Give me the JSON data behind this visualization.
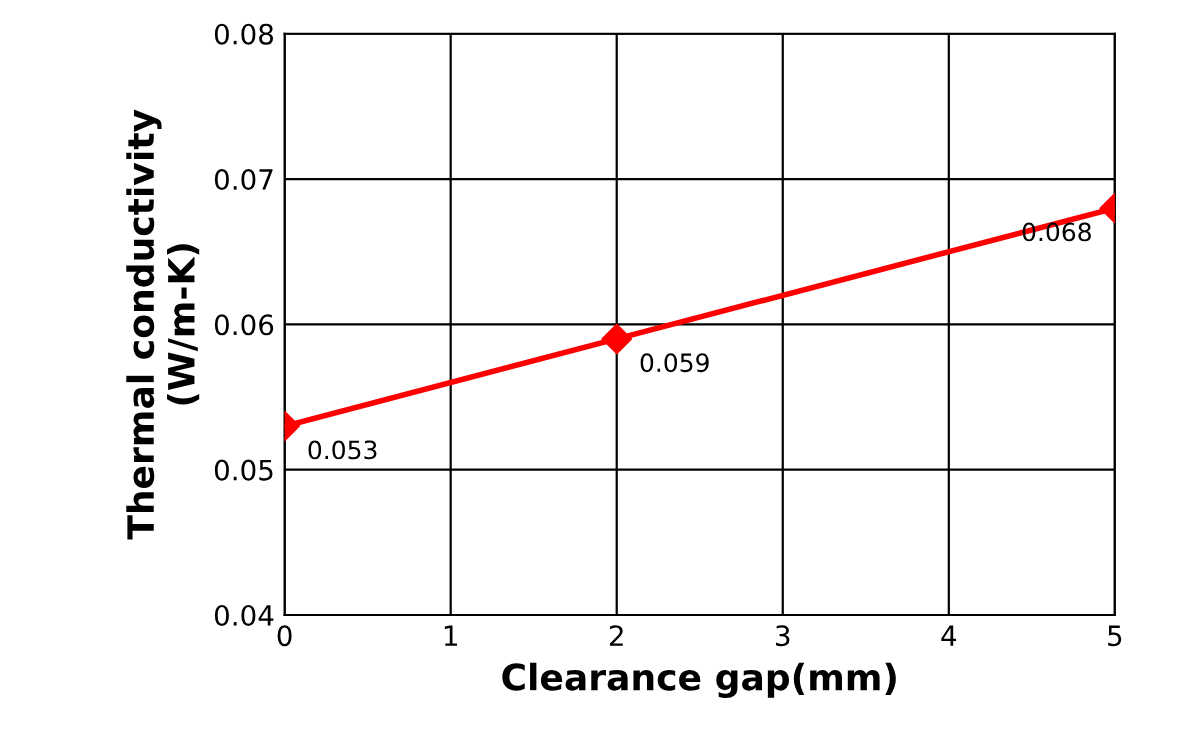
{
  "chart_data": {
    "type": "line",
    "xlabel": "Clearance gap(mm)",
    "ylabel": "Thermal conductivity\n(W/m-K)",
    "x": [
      0,
      2,
      5
    ],
    "series": [
      {
        "color": "#ff0000",
        "values": [
          0.053,
          0.059,
          0.068
        ]
      }
    ],
    "xlim": [
      0,
      5
    ],
    "xticks": [
      0,
      1,
      2,
      3,
      4,
      5
    ],
    "ylim": [
      0.04,
      0.08
    ],
    "yticks": [
      0.04,
      0.05,
      0.06,
      0.07,
      0.08
    ],
    "grid": true,
    "marker": "diamond",
    "line_style": "solid",
    "data_labels": true
  }
}
